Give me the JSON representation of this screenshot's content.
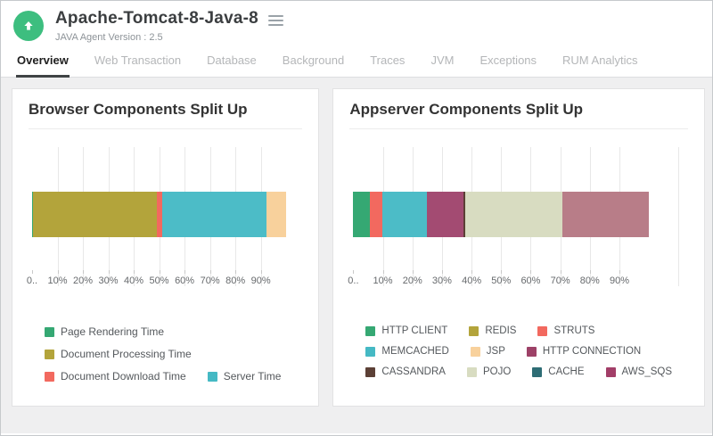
{
  "header": {
    "title": "Apache-Tomcat-8-Java-8",
    "subtitle": "JAVA Agent Version : 2.5"
  },
  "icons": {
    "status": "up-arrow-circle",
    "menu": "hamburger-menu"
  },
  "colors": {
    "status_green": "#3DBE7F",
    "active_tab_underline": "#3F4345",
    "content_bg": "#EFEFF0",
    "grid_line": "#E8E8E8"
  },
  "tabs": [
    {
      "label": "Overview",
      "active": true
    },
    {
      "label": "Web Transaction",
      "active": false
    },
    {
      "label": "Database",
      "active": false
    },
    {
      "label": "Background",
      "active": false
    },
    {
      "label": "Traces",
      "active": false
    },
    {
      "label": "JVM",
      "active": false
    },
    {
      "label": "Exceptions",
      "active": false
    },
    {
      "label": "RUM Analytics",
      "active": false
    }
  ],
  "chart_data": [
    {
      "type": "bar",
      "stacked": true,
      "orientation": "horizontal",
      "title": "Browser Components Split Up",
      "unit": "%",
      "xlim": [
        0,
        100
      ],
      "x_tick_values": [
        0,
        10,
        20,
        30,
        40,
        50,
        60,
        70,
        80,
        90
      ],
      "x_tick_labels": [
        "0..",
        "10%",
        "20%",
        "30%",
        "40%",
        "50%",
        "60%",
        "70%",
        "80%",
        "90%"
      ],
      "grid_values": [
        10,
        20,
        30,
        40,
        50,
        60,
        70,
        80,
        90
      ],
      "plot_max": 105,
      "segments": [
        {
          "name": "Page Rendering Time",
          "value": 0.5,
          "color": "#35A873"
        },
        {
          "name": "Document Processing Time",
          "value": 48.7,
          "color": "#B3A43B"
        },
        {
          "name": "Document Download Time",
          "value": 1.9,
          "color": "#F2695F"
        },
        {
          "name": "Server Time",
          "value": 41.0,
          "color": "#4CBCC7"
        },
        {
          "name": "",
          "value": 7.9,
          "color": "#F8D19C"
        }
      ],
      "legend_rows": [
        [
          {
            "label": "Page Rendering Time",
            "color": "#35A873"
          }
        ],
        [
          {
            "label": "Document Processing Time",
            "color": "#B3A43B"
          }
        ],
        [
          {
            "label": "Document Download Time",
            "color": "#F2695F"
          },
          {
            "label": "Server Time",
            "color": "#45B9C4"
          }
        ]
      ]
    },
    {
      "type": "bar",
      "stacked": true,
      "orientation": "horizontal",
      "title": "Appserver Components Split Up",
      "unit": "%",
      "xlim": [
        0,
        100
      ],
      "x_tick_values": [
        0,
        10,
        20,
        30,
        40,
        50,
        60,
        70,
        80,
        90
      ],
      "x_tick_labels": [
        "0..",
        "10%",
        "20%",
        "30%",
        "40%",
        "50%",
        "60%",
        "70%",
        "80%",
        "90%"
      ],
      "grid_values": [
        10,
        20,
        30,
        40,
        50,
        60,
        70,
        80,
        90,
        110
      ],
      "plot_max": 112,
      "segments": [
        {
          "name": "HTTP CLIENT",
          "value": 5.7,
          "color": "#35A873"
        },
        {
          "name": "STRUTS",
          "value": 4.1,
          "color": "#F2695F"
        },
        {
          "name": "MEMCACHED",
          "value": 15.0,
          "color": "#4CBCC7"
        },
        {
          "name": "HTTP CONNECTION",
          "value": 12.4,
          "color": "#A34B72"
        },
        {
          "name": "CASSANDRA",
          "value": 0.8,
          "color": "#5C4036"
        },
        {
          "name": "POJO",
          "value": 32.7,
          "color": "#D8DCC1"
        },
        {
          "name": "AWS_SQS",
          "value": 29.3,
          "color": "#B87D88"
        }
      ],
      "legend_rows": [
        [
          {
            "label": "HTTP CLIENT",
            "color": "#35A873"
          },
          {
            "label": "REDIS",
            "color": "#B3A43B"
          },
          {
            "label": "STRUTS",
            "color": "#F2695F"
          }
        ],
        [
          {
            "label": "MEMCACHED",
            "color": "#45B9C4"
          },
          {
            "label": "JSP",
            "color": "#F8D19C"
          },
          {
            "label": "HTTP CONNECTION",
            "color": "#9D4167"
          }
        ],
        [
          {
            "label": "CASSANDRA",
            "color": "#5C4036"
          },
          {
            "label": "POJO",
            "color": "#D8DCC1"
          },
          {
            "label": "CACHE",
            "color": "#2E6D75"
          },
          {
            "label": "AWS_SQS",
            "color": "#A23E68"
          }
        ]
      ]
    }
  ]
}
